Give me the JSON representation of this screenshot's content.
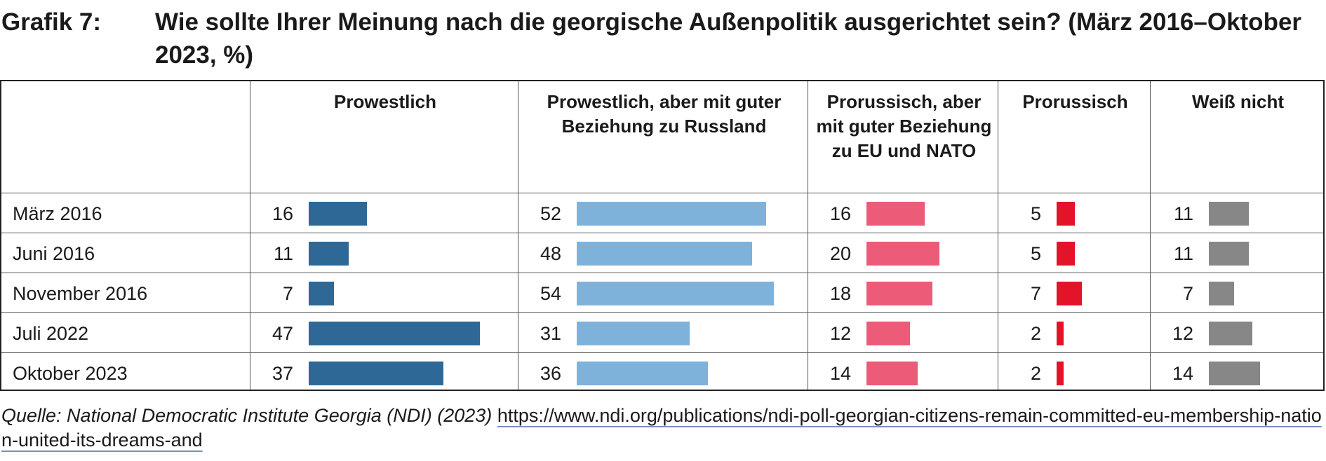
{
  "header": {
    "label": "Grafik 7:",
    "title": "Wie sollte Ihrer Meinung nach die georgische Außenpolitik ausgerichtet sein? (März 2016–Oktober 2023, %)"
  },
  "source": {
    "citation": "Quelle: National Democratic Institute Georgia (NDI) (2023)",
    "url": "https://www.ndi.org/publications/ndi-poll-georgian-citizens-remain-committed-eu-membership-nation-united-its-dreams-and"
  },
  "chart_data": {
    "type": "table",
    "title": "Wie sollte Ihrer Meinung nach die georgische Außenpolitik ausgerichtet sein? (März 2016–Oktober 2023, %)",
    "categories": [
      "März 2016",
      "Juni 2016",
      "November 2016",
      "Juli 2022",
      "Oktober 2023"
    ],
    "series": [
      {
        "name": "Prowestlich",
        "color": "#2e6896",
        "values": [
          16,
          11,
          7,
          47,
          37
        ]
      },
      {
        "name": "Prowestlich, aber mit guter Beziehung zu Russland",
        "color": "#7fb2da",
        "values": [
          52,
          48,
          54,
          31,
          36
        ]
      },
      {
        "name": "Prorussisch, aber mit guter Beziehung zu EU und NATO",
        "color": "#ec5b77",
        "values": [
          16,
          20,
          18,
          12,
          14
        ]
      },
      {
        "name": "Prorussisch",
        "color": "#e3132a",
        "values": [
          5,
          5,
          7,
          2,
          2
        ]
      },
      {
        "name": "Weiß nicht",
        "color": "#878787",
        "values": [
          11,
          11,
          7,
          12,
          14
        ]
      }
    ],
    "unit": "%"
  }
}
